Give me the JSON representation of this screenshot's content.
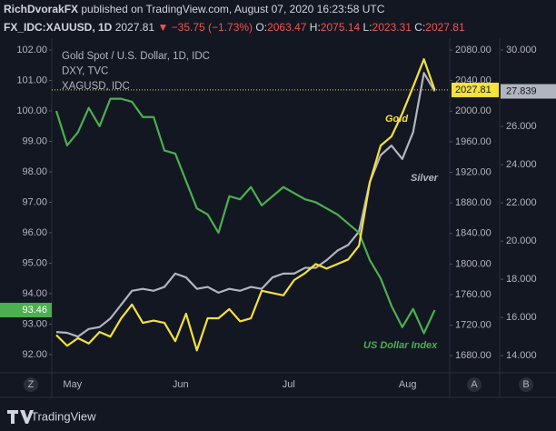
{
  "header": {
    "author": "RichDvorakFX",
    "published": "published on TradingView.com, August 07, 2020 16:23:58 UTC",
    "symbol": "FX_IDC:XAUUSD, 1D",
    "last": "2027.81",
    "change": "▼ −35.75 (−1.73%)",
    "open_label": "O:",
    "open": "2063.47",
    "high_label": "H:",
    "high": "2075.14",
    "low_label": "L:",
    "low": "2023.31",
    "close_label": "C:",
    "close": "2027.81"
  },
  "controls": {
    "left": "Z",
    "auto": "A",
    "log": "B"
  },
  "footer": {
    "brand": "TradingView"
  },
  "chart_data": {
    "type": "line",
    "categories": [
      null,
      null,
      "May",
      null,
      null,
      null,
      null,
      null,
      null,
      null,
      null,
      null,
      "Jun",
      null,
      null,
      null,
      null,
      null,
      null,
      null,
      null,
      null,
      "Jul",
      null,
      null,
      null,
      null,
      null,
      null,
      null,
      null,
      null,
      null,
      "Aug",
      null,
      null
    ],
    "series": [
      {
        "name": "Gold Spot / U.S. Dollar, 1D, IDC",
        "color": "#f5e23a",
        "axis": "y2",
        "values": [
          1707,
          1693,
          1703,
          1696,
          1711,
          1705,
          1729,
          1747,
          1723,
          1726,
          1723,
          1699,
          1735,
          1687,
          1729,
          1729,
          1741,
          1725,
          1729,
          1765,
          1762,
          1759,
          1779,
          1788,
          1800,
          1794,
          1800,
          1806,
          1824,
          1907,
          1955,
          1967,
          1997,
          2032,
          2068,
          2027.81
        ]
      },
      {
        "name": "DXY, TVC",
        "color": "#4caf50",
        "axis": "y",
        "values": [
          100.0,
          98.87,
          99.3,
          100.1,
          99.5,
          100.4,
          100.4,
          100.3,
          99.8,
          99.8,
          98.7,
          98.6,
          97.7,
          96.8,
          96.6,
          96.0,
          97.2,
          97.1,
          97.5,
          96.9,
          97.2,
          97.5,
          97.3,
          97.1,
          97.0,
          96.8,
          96.6,
          96.3,
          96.0,
          95.1,
          94.5,
          93.6,
          92.9,
          93.5,
          92.7,
          93.46
        ]
      },
      {
        "name": "XAGUSD, IDC",
        "color": "#b2b5be",
        "axis": "y3",
        "values": [
          15.24,
          15.2,
          15.0,
          15.4,
          15.5,
          15.95,
          16.67,
          17.4,
          17.5,
          17.4,
          17.6,
          18.3,
          18.1,
          17.5,
          17.6,
          17.3,
          17.5,
          17.4,
          17.6,
          17.5,
          18.1,
          18.3,
          18.3,
          18.6,
          18.6,
          19.0,
          19.5,
          19.8,
          20.5,
          23.1,
          24.5,
          25.0,
          24.3,
          25.7,
          28.8,
          27.839
        ]
      }
    ],
    "annotations": [
      {
        "text": "Gold",
        "series": 0
      },
      {
        "text": "Silver",
        "series": 2
      },
      {
        "text": "US Dollar Index",
        "series": 1
      }
    ],
    "ylim": [
      91.46,
      102.3
    ],
    "yticks": [
      {
        "value": 92,
        "label": "92.00"
      },
      {
        "value": 93,
        "label": "93.00"
      },
      {
        "value": 94,
        "label": "94.00"
      },
      {
        "value": 95,
        "label": "95.00"
      },
      {
        "value": 96,
        "label": "96.00"
      },
      {
        "value": 97,
        "label": "97.00"
      },
      {
        "value": 98,
        "label": "98.00"
      },
      {
        "value": 99,
        "label": "99.00"
      },
      {
        "value": 100,
        "label": "100.00"
      },
      {
        "value": 101,
        "label": "101.00"
      },
      {
        "value": 102,
        "label": "102.00"
      }
    ],
    "y2lim": [
      1660,
      2092
    ],
    "y2ticks": [
      {
        "value": 1680,
        "label": "1680.00"
      },
      {
        "value": 1720,
        "label": "1720.00"
      },
      {
        "value": 1760,
        "label": "1760.00"
      },
      {
        "value": 1800,
        "label": "1800.00"
      },
      {
        "value": 1840,
        "label": "1840.00"
      },
      {
        "value": 1880,
        "label": "1880.00"
      },
      {
        "value": 1920,
        "label": "1920.00"
      },
      {
        "value": 1960,
        "label": "1960.00"
      },
      {
        "value": 2000,
        "label": "2000.00"
      },
      {
        "value": 2040,
        "label": "2040.00"
      },
      {
        "value": 2080,
        "label": "2080.00"
      }
    ],
    "y3lim": [
      13.2,
      30.48
    ],
    "y3ticks": [
      {
        "value": 14,
        "label": "14.000"
      },
      {
        "value": 16,
        "label": "16.000"
      },
      {
        "value": 18,
        "label": "18.000"
      },
      {
        "value": 20,
        "label": "20.000"
      },
      {
        "value": 22,
        "label": "22.000"
      },
      {
        "value": 24,
        "label": "24.000"
      },
      {
        "value": 26,
        "label": "26.000"
      },
      {
        "value": 28,
        "label": "28.000"
      },
      {
        "value": 30,
        "label": "30.000"
      }
    ],
    "grid": false
  }
}
